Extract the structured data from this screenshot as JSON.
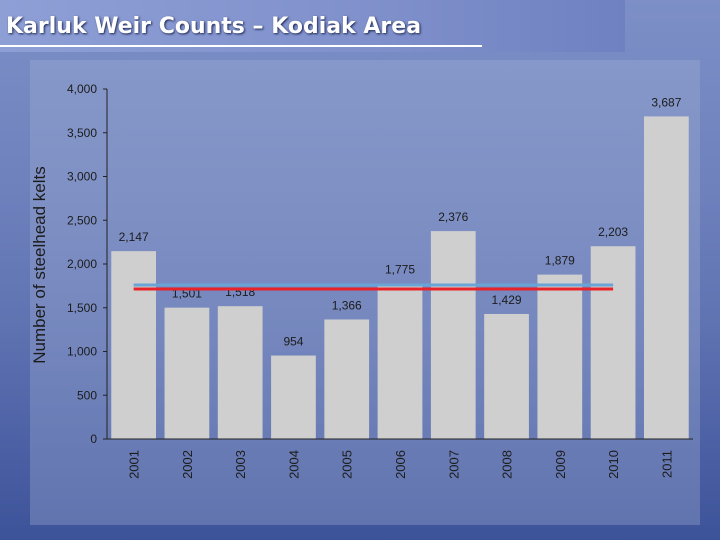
{
  "slide": {
    "title": "Karluk Weir Counts – Kodiak Area"
  },
  "colors": {
    "bar": "#cfcfcf",
    "mean_line": "#e8232a",
    "mean_line_secondary": "#6aa3d5",
    "axis_text": "#1c1c1c"
  },
  "chart_data": {
    "type": "bar",
    "title": "",
    "xlabel": "",
    "ylabel": "Number of steelhead kelts",
    "categories": [
      "2001",
      "2002",
      "2003",
      "2004",
      "2005",
      "2006",
      "2007",
      "2008",
      "2009",
      "2010",
      "2011"
    ],
    "values": [
      2147,
      1501,
      1518,
      954,
      1366,
      1775,
      2376,
      1429,
      1879,
      2203,
      3687
    ],
    "value_labels": [
      "2,147",
      "1,501",
      "1,518",
      "954",
      "1,366",
      "1,775",
      "2,376",
      "1,429",
      "1,879",
      "2,203",
      "3,687"
    ],
    "ylim": [
      0,
      4000
    ],
    "yticks": [
      0,
      500,
      1000,
      1500,
      2000,
      2500,
      3000,
      3500,
      4000
    ],
    "ytick_labels": [
      "0",
      "500",
      "1,000",
      "1,500",
      "2,000",
      "2,500",
      "3,000",
      "3,500",
      "4,000"
    ],
    "grid": false,
    "reference_lines": [
      {
        "value": 1760,
        "color": "#6aa3d5"
      },
      {
        "value": 1715,
        "color": "#e8232a"
      }
    ]
  }
}
